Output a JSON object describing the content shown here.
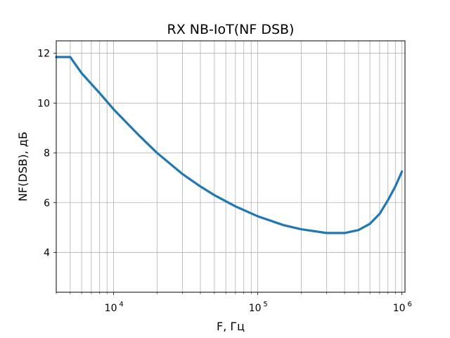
{
  "chart_data": {
    "type": "line",
    "title": "RX NB-IoT(NF DSB)",
    "xlabel": "F, Гц",
    "ylabel": "NF(DSB), дБ",
    "xscale": "log",
    "xlim": [
      4000,
      1050000
    ],
    "ylim": [
      2.4,
      12.5
    ],
    "grid": true,
    "grid_minor_x": true,
    "x_major_ticks": [
      10000,
      100000,
      1000000
    ],
    "x_tick_labels": [
      {
        "base": "10",
        "exp": "4"
      },
      {
        "base": "10",
        "exp": "5"
      },
      {
        "base": "10",
        "exp": "6"
      }
    ],
    "y_ticks": [
      4,
      6,
      8,
      10,
      12
    ],
    "y_tick_labels": [
      "4",
      "6",
      "8",
      "10",
      "12"
    ],
    "series": [
      {
        "color": "#1f77b4",
        "x": [
          4000,
          5000,
          6000,
          8000,
          10000,
          15000,
          20000,
          30000,
          40000,
          50000,
          70000,
          100000,
          150000,
          200000,
          300000,
          400000,
          500000,
          600000,
          700000,
          800000,
          900000,
          1000000
        ],
        "y": [
          11.85,
          11.85,
          11.2,
          10.4,
          9.75,
          8.7,
          8.0,
          7.15,
          6.65,
          6.3,
          5.85,
          5.45,
          5.1,
          4.93,
          4.78,
          4.78,
          4.9,
          5.15,
          5.55,
          6.1,
          6.65,
          7.25
        ]
      }
    ]
  }
}
